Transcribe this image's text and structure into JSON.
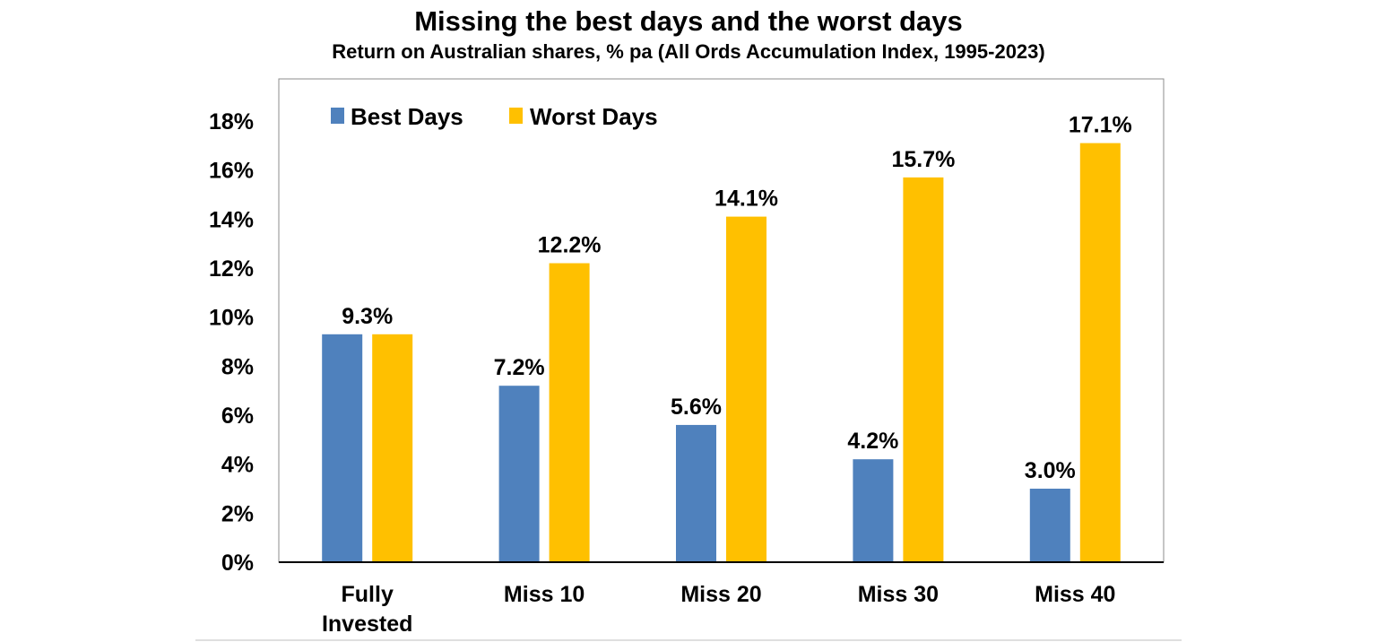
{
  "chart_data": {
    "type": "bar",
    "title": "Missing the best days and the worst days",
    "subtitle": "Return on Australian shares, % pa (All Ords Accumulation Index, 1995-2023)",
    "categories": [
      [
        "Fully",
        "Invested"
      ],
      [
        "Miss 10"
      ],
      [
        "Miss 20"
      ],
      [
        "Miss 30"
      ],
      [
        "Miss 40"
      ]
    ],
    "series": [
      {
        "name": "Best Days",
        "color": "#4F81BD",
        "values": [
          9.3,
          7.2,
          5.6,
          4.2,
          3.0
        ],
        "labels": [
          "9.3%",
          "7.2%",
          "5.6%",
          "4.2%",
          "3.0%"
        ]
      },
      {
        "name": "Worst Days",
        "color": "#FFC000",
        "values": [
          9.3,
          12.2,
          14.1,
          15.7,
          17.1
        ],
        "labels": [
          "",
          "12.2%",
          "14.1%",
          "15.7%",
          "17.1%"
        ]
      }
    ],
    "y_ticks": [
      0,
      2,
      4,
      6,
      8,
      10,
      12,
      14,
      16,
      18
    ],
    "y_tick_labels": [
      "0%",
      "2%",
      "4%",
      "6%",
      "8%",
      "10%",
      "12%",
      "14%",
      "16%",
      "18%"
    ],
    "ylim": [
      0,
      18
    ],
    "xlabel": "",
    "ylabel": "",
    "grid": false,
    "legend": "top-left"
  }
}
